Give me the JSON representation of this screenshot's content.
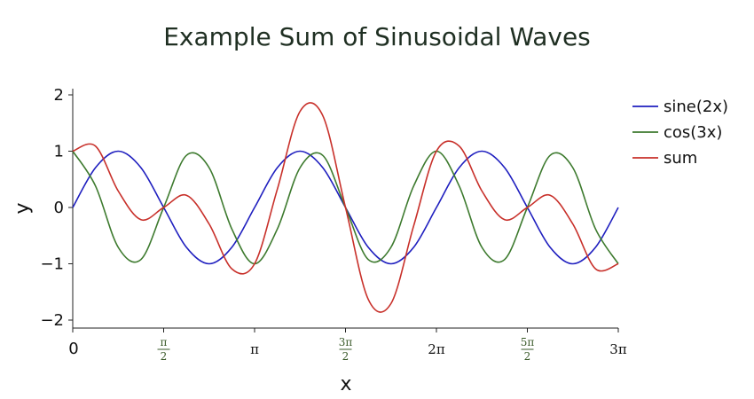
{
  "chart_data": {
    "type": "line",
    "title": "Example Sum of Sinusoidal Waves",
    "xlabel": "x",
    "ylabel": "y",
    "xlim": [
      0,
      9.42477796
    ],
    "ylim": [
      -2.1,
      2.1
    ],
    "grid": false,
    "legend_position": "top-right (outside plot)",
    "x_ticks": [
      {
        "value": 0,
        "label": "0"
      },
      {
        "value": 1.57079633,
        "num": "π",
        "den": "2",
        "color": "#3a5a2a"
      },
      {
        "value": 3.14159265,
        "label": "π"
      },
      {
        "value": 4.71238898,
        "num": "3π",
        "den": "2",
        "color": "#3a5a2a"
      },
      {
        "value": 6.28318531,
        "label": "2π"
      },
      {
        "value": 7.85398163,
        "num": "5π",
        "den": "2",
        "color": "#3a5a2a"
      },
      {
        "value": 9.42477796,
        "label": "3π"
      }
    ],
    "y_ticks": [
      {
        "value": 2,
        "label": "2"
      },
      {
        "value": 1,
        "label": "1"
      },
      {
        "value": 0,
        "label": "0"
      },
      {
        "value": -1,
        "label": "−1"
      },
      {
        "value": -2,
        "label": "−2"
      }
    ],
    "x": [
      0,
      0.3927,
      0.7854,
      1.1781,
      1.5708,
      1.9635,
      2.3562,
      2.7489,
      3.1416,
      3.5343,
      3.927,
      4.3197,
      4.7124,
      5.1051,
      5.4978,
      5.8905,
      6.2832,
      6.6759,
      7.0686,
      7.4613,
      7.854,
      8.2467,
      8.6394,
      9.0321,
      9.4248
    ],
    "series": [
      {
        "name": "sine(2x)",
        "color": "#1f1fbf",
        "values": [
          0,
          0.707,
          1,
          0.707,
          0,
          -0.707,
          -1,
          -0.707,
          0,
          0.707,
          1,
          0.707,
          0,
          -0.707,
          -1,
          -0.707,
          0,
          0.707,
          1,
          0.707,
          0,
          -0.707,
          -1,
          -0.707,
          0
        ]
      },
      {
        "name": "cos(3x)",
        "color": "#3d7a2e",
        "values": [
          1,
          0.383,
          -0.707,
          -0.924,
          0,
          0.924,
          0.707,
          -0.383,
          -1,
          -0.383,
          0.707,
          0.924,
          0,
          -0.924,
          -0.707,
          0.383,
          1,
          0.383,
          -0.707,
          -0.924,
          0,
          0.924,
          0.707,
          -0.383,
          -1
        ]
      },
      {
        "name": "sum",
        "color": "#c8302a",
        "values": [
          1,
          1.09,
          0.293,
          -0.217,
          0,
          0.217,
          -0.293,
          -1.09,
          -1,
          0.324,
          1.707,
          1.631,
          0,
          -1.631,
          -1.707,
          -0.324,
          1,
          1.09,
          0.293,
          -0.217,
          0,
          0.217,
          -0.293,
          -1.09,
          -1
        ]
      }
    ]
  }
}
